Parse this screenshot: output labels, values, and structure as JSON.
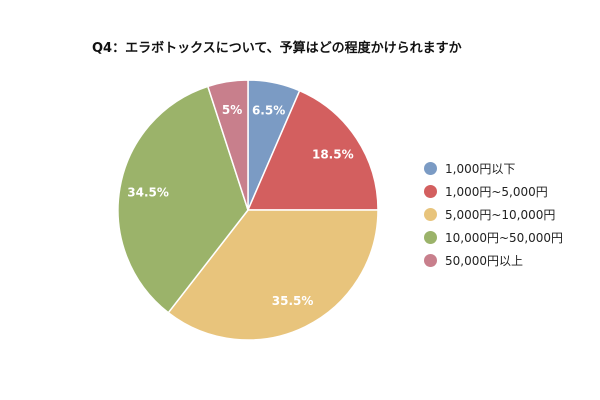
{
  "chart_data": {
    "type": "pie",
    "title": "Q4：エラボトックスについて、予算はどの程度かけられますか",
    "categories": [
      "1,000円以下",
      "1,000円~5,000円",
      "5,000円~10,000円",
      "10,000円~50,000円",
      "50,000円以上"
    ],
    "values": [
      6.5,
      18.5,
      35.5,
      34.5,
      5
    ],
    "data_labels": [
      "6.5%",
      "18.5%",
      "35.5%",
      "34.5%",
      "5%"
    ],
    "colors": [
      "#7b9bc4",
      "#d35f5f",
      "#e8c47c",
      "#9bb36a",
      "#c87f8c"
    ],
    "legend_position": "right",
    "start_angle": "top",
    "direction": "clockwise"
  }
}
